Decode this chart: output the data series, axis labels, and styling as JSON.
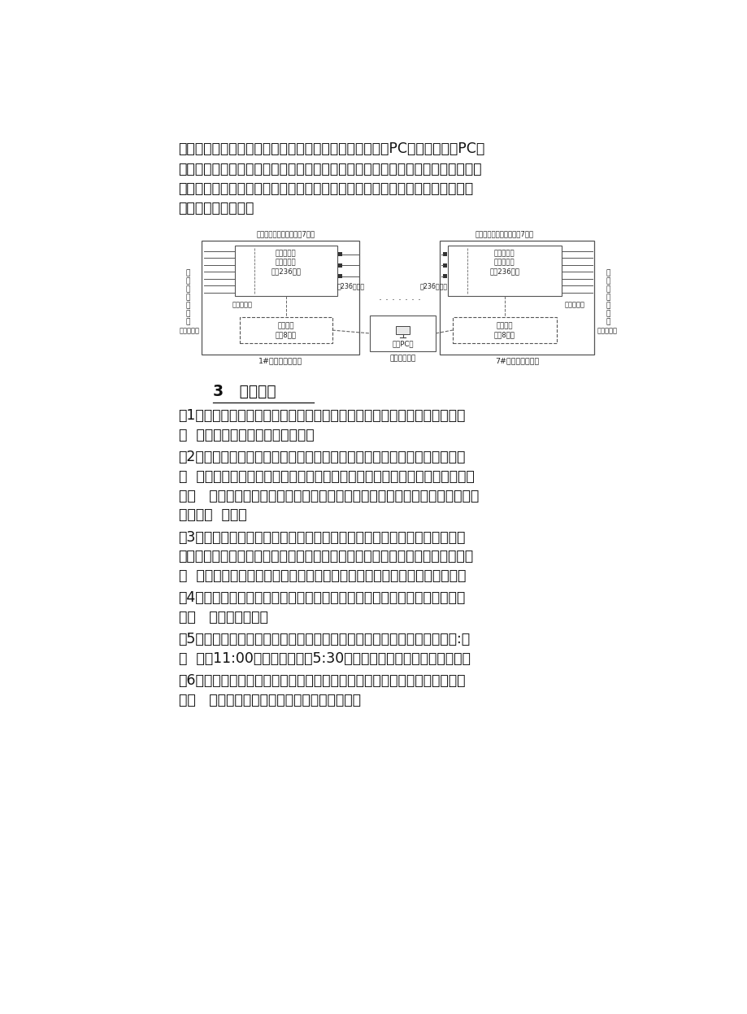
{
  "bg_color": "#ffffff",
  "page_width": 9.2,
  "page_height": 12.47,
  "top_text": [
    "理智能控制系统。该系统通过通讯线将水表的数据采集到PC机，然后通过PC机",
    "来进行控制，如果某个房间用水预付费不足，系统就会自动将其房间的电关断，即",
    "通过电来控制房间水的使用。这样管理将更加方便、更加人性化，不会因停水造",
    "成学生生活的不便。"
  ],
  "section_title": "3   系统功能",
  "paragraphs": [
    {
      "lines": [
        "（1）管理员权限分配。系统可以分配不同的管理级别和权限，有利于明确管",
        "理  责任，保证系统运行管理安全。"
      ]
    },
    {
      "lines": [
        "（2）退房、换房管理。用户输入公寓号、房间号后，系统自动提供此房间总",
        "购  电量、总补助电量、剩余电量等信息，用户查看后输入退换房电量、保留电",
        "量，   系统自动完成退换房金额计算、剩余电量处理等功能，退换房历史信息也",
        "可查询、  打印。"
      ]
    },
    {
      "lines": [
        "（3）月补电量管理。用户可以根据房间居住学生数目的不同设置每个房间不",
        "同的补助电量，按月进行添加，系统自动记录补助电量添加情况。如该房间免费",
        "电  量未用完，剩余电量自动转入下月，补助电量添加历史记录可查询打印。"
      ]
    },
    {
      "lines": [
        "（4）短路保护。在用电出现意外的情况下，安装在用户表下方的空开马上跳",
        "开，   防止事故发生。"
      ]
    },
    {
      "lines": [
        "（5）定时统一停送电。在需要集中停送电的时候，可进行定时设置，比如:学",
        "校  晚上11:00统一停电，早上5:30统一送电，学校放假统一停电等。"
      ]
    },
    {
      "lines": [
        "（6）预收费管理。该系统采用预收费管理在计算机上进行预售电，学生先买",
        "电，   后用电，售电数据实时传输至计量系统。"
      ]
    }
  ]
}
